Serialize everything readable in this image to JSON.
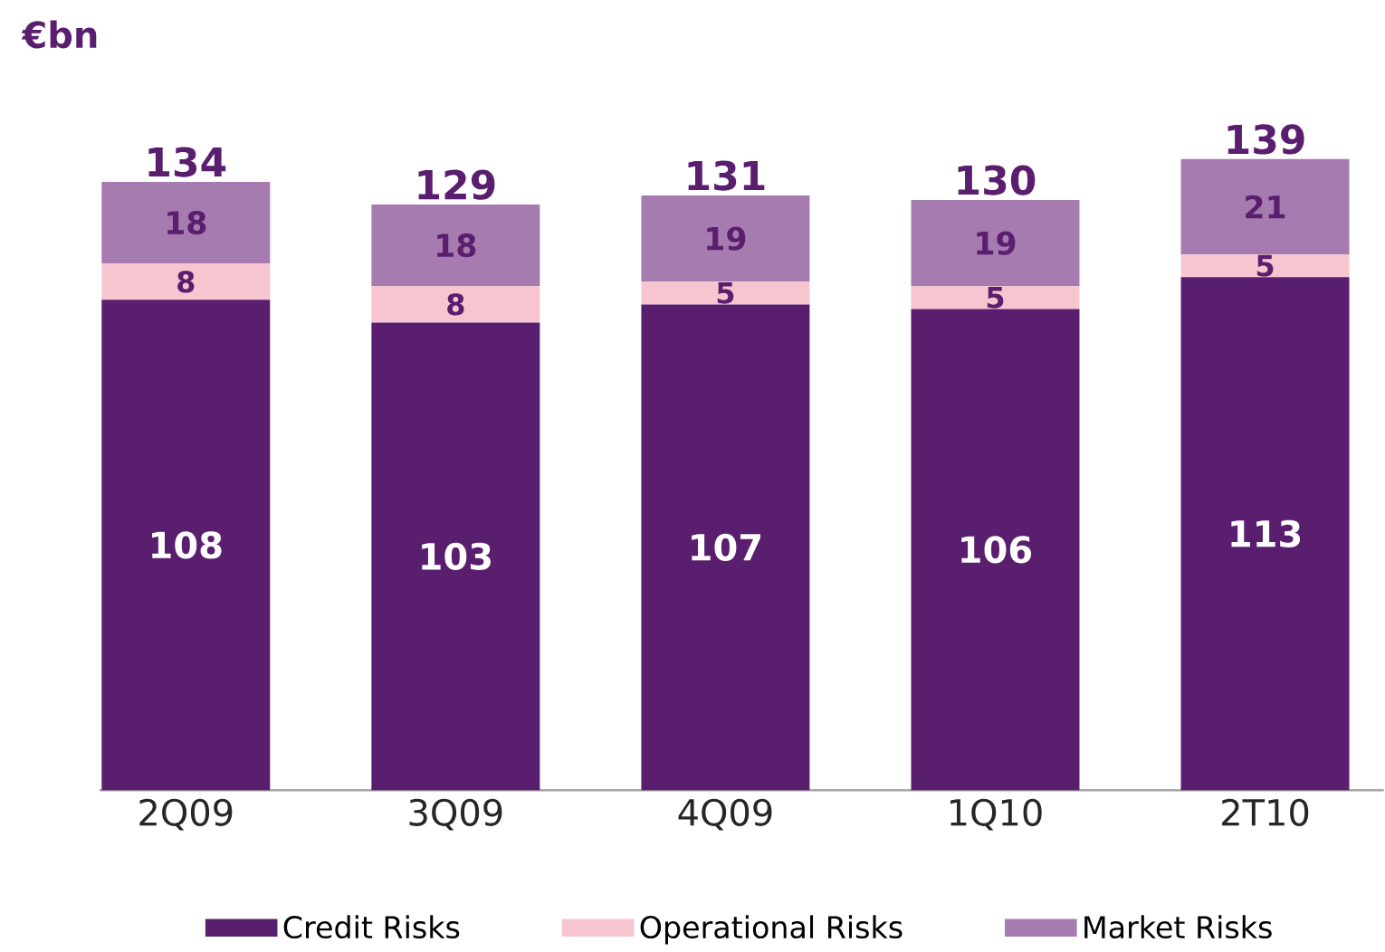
{
  "chart_data": {
    "type": "bar",
    "title": "€bn",
    "stacked": true,
    "data_labels": true,
    "legend": "bottom",
    "categories": [
      "2Q09",
      "3Q09",
      "4Q09",
      "1Q10",
      "2T10"
    ],
    "series": [
      {
        "name": "Credit Risks",
        "color": "#5a1e6e",
        "values": [
          108,
          103,
          107,
          106,
          113
        ]
      },
      {
        "name": "Operational Risks",
        "color": "#f7c5cf",
        "values": [
          8,
          8,
          5,
          5,
          5
        ]
      },
      {
        "name": "Market Risks",
        "color": "#a67bb0",
        "values": [
          18,
          18,
          19,
          19,
          21
        ]
      }
    ],
    "totals": [
      "134",
      "129",
      "131",
      "130",
      "139"
    ]
  }
}
